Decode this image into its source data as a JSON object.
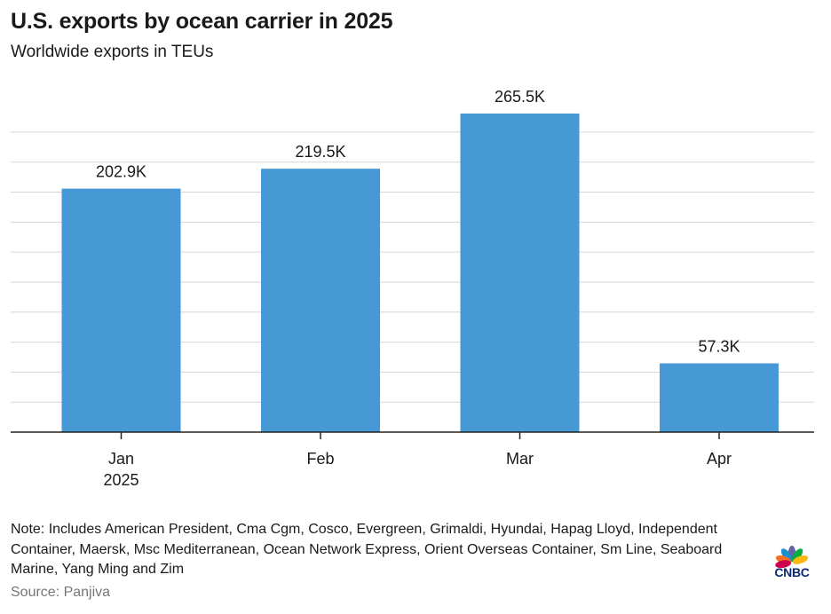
{
  "title": "U.S. exports by ocean carrier in 2025",
  "subtitle": "Worldwide exports in TEUs",
  "chart_data": {
    "type": "bar",
    "categories": [
      "Jan",
      "Feb",
      "Mar",
      "Apr"
    ],
    "category_sublabels": [
      "2025",
      "",
      "",
      ""
    ],
    "values": [
      202.9,
      219.5,
      265.5,
      57.3
    ],
    "value_labels": [
      "202.9K",
      "219.5K",
      "265.5K",
      "57.3K"
    ],
    "unit": "K TEUs",
    "ylim": [
      0,
      270
    ],
    "ygrid_step": 25,
    "grid": true,
    "bar_color": "#4799d6",
    "xlabel": "",
    "ylabel": ""
  },
  "note": "Note: Includes American President, Cma Cgm, Cosco, Evergreen, Grimaldi, Hyundai, Hapag Lloyd, Independent Container, Maersk, Msc Mediterranean, Ocean Network Express, Orient Overseas Container, Sm Line, Seaboard Marine, Yang Ming and Zim",
  "source": "Source: Panjiva",
  "logo": {
    "text": "CNBC",
    "icon": "peacock-icon"
  }
}
